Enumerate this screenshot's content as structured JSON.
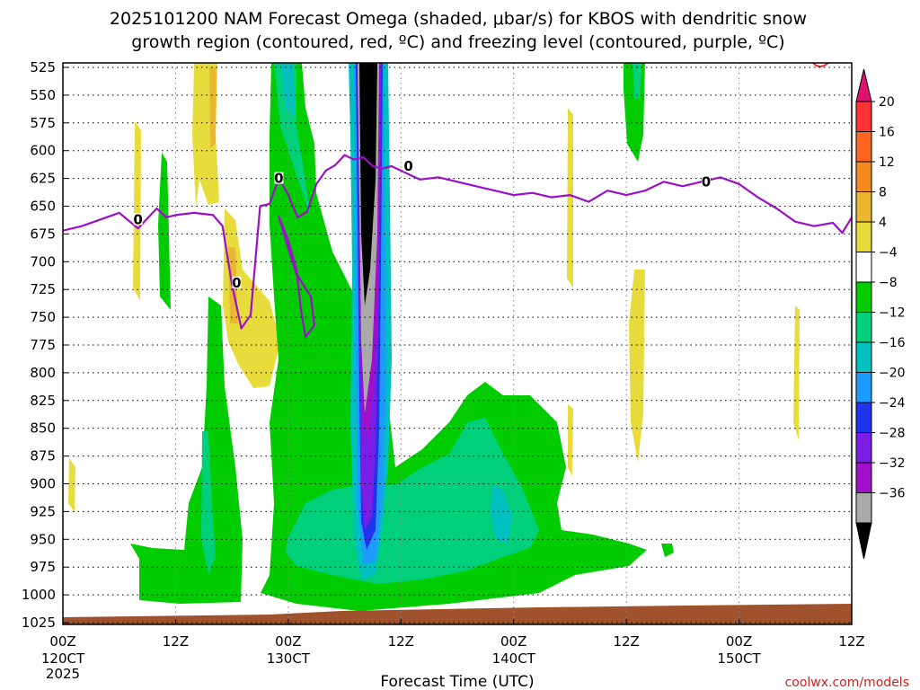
{
  "chart_data": {
    "type": "heatmap",
    "title_lines": [
      "2025101200 NAM Forecast Omega (shaded, μbar/s) for KBOS with dendritic snow",
      "growth region (contoured, red, ºC) and freezing level (contoured, purple, ºC)"
    ],
    "xlabel": "Forecast Time (UTC)",
    "credit": "coolwx.com/models",
    "y_ticks": [
      525,
      550,
      575,
      600,
      625,
      650,
      675,
      700,
      725,
      750,
      775,
      800,
      825,
      850,
      875,
      900,
      925,
      950,
      975,
      1000,
      1025
    ],
    "ylim": [
      525,
      1025
    ],
    "xlim_hours": [
      0,
      84
    ],
    "x_ticks": [
      {
        "hour": 0,
        "label": "00Z",
        "date": "120CT",
        "year": "2025"
      },
      {
        "hour": 12,
        "label": "12Z",
        "date": "",
        "year": ""
      },
      {
        "hour": 24,
        "label": "00Z",
        "date": "130CT",
        "year": ""
      },
      {
        "hour": 36,
        "label": "12Z",
        "date": "",
        "year": ""
      },
      {
        "hour": 48,
        "label": "00Z",
        "date": "140CT",
        "year": ""
      },
      {
        "hour": 60,
        "label": "12Z",
        "date": "",
        "year": ""
      },
      {
        "hour": 72,
        "label": "00Z",
        "date": "150CT",
        "year": ""
      },
      {
        "hour": 84,
        "label": "12Z",
        "date": "",
        "year": ""
      }
    ],
    "colorbar": {
      "labels": [
        "20",
        "16",
        "12",
        "8",
        "4",
        "−4",
        "−8",
        "−12",
        "−16",
        "−20",
        "−24",
        "−28",
        "−32",
        "−36"
      ],
      "colors": [
        "#ff3333",
        "#ff6622",
        "#f58a1e",
        "#e8b832",
        "#e8dc3c",
        "#ffffff",
        "#00cc00",
        "#00d07a",
        "#00c0c0",
        "#1e9bff",
        "#2233ee",
        "#7a1ee6",
        "#a010c8",
        "#aaaaaa"
      ],
      "top_arrow_color": "#e0116e",
      "bottom_arrow_color": "#000000"
    },
    "freezing_level": {
      "label": "0",
      "color": "#9b10c8",
      "hours": [
        0,
        2,
        4,
        6,
        8,
        10,
        11,
        12,
        14,
        16,
        17,
        18,
        19,
        20,
        21,
        22,
        23,
        24,
        25,
        26,
        27,
        28,
        29,
        30,
        31,
        32,
        33,
        34,
        35,
        36,
        37,
        38,
        40,
        42,
        44,
        46,
        48,
        50,
        52,
        54,
        56,
        58,
        60,
        62,
        64,
        66,
        68,
        70,
        72,
        74,
        76,
        78,
        80,
        82,
        83,
        84
      ],
      "pressure": [
        672,
        668,
        662,
        656,
        670,
        652,
        660,
        658,
        656,
        658,
        668,
        720,
        760,
        748,
        650,
        648,
        625,
        640,
        660,
        655,
        630,
        618,
        613,
        604,
        608,
        606,
        614,
        616,
        614,
        618,
        622,
        626,
        624,
        628,
        632,
        636,
        640,
        638,
        642,
        640,
        646,
        636,
        640,
        636,
        628,
        632,
        628,
        624,
        630,
        642,
        652,
        664,
        668,
        665,
        674,
        660
      ]
    },
    "omega_fields": [
      {
        "value": -6,
        "color": "#00cc00",
        "top": 530,
        "bottom": 1005,
        "hour_start": 22.3,
        "hour_end": 33.5
      },
      {
        "value": -6,
        "color": "#00cc00",
        "top": 775,
        "bottom": 1000,
        "hour_start": 33.5,
        "hour_end": 54.5
      },
      {
        "value": -6,
        "color": "#00cc00",
        "top": 935,
        "bottom": 975,
        "hour_start": 54.5,
        "hour_end": 61.5
      },
      {
        "value": -6,
        "color": "#00cc00",
        "top": 700,
        "bottom": 978,
        "hour_start": 8,
        "hour_end": 18.8
      },
      {
        "value": -6,
        "color": "#00cc00",
        "top": 620,
        "bottom": 700,
        "hour_start": 10.4,
        "hour_end": 11.8
      },
      {
        "value": -6,
        "color": "#00cc00",
        "top": 525,
        "bottom": 585,
        "hour_start": 60.2,
        "hour_end": 62.6
      },
      {
        "value": -10,
        "color": "#00d07a",
        "top": 800,
        "bottom": 975,
        "hour_start": 23.5,
        "hour_end": 52
      },
      {
        "value": -10,
        "color": "#00d07a",
        "top": 525,
        "bottom": 660,
        "hour_start": 23.5,
        "hour_end": 30.5
      },
      {
        "value": -14,
        "color": "#00c0c0",
        "top": 880,
        "bottom": 925,
        "hour_start": 45.5,
        "hour_end": 48
      },
      {
        "value": -18,
        "color": "#1e9bff",
        "top": 525,
        "bottom": 940,
        "hour_start": 31.6,
        "hour_end": 33.6
      },
      {
        "value": -26,
        "color": "#7a1ee6",
        "top": 525,
        "bottom": 930,
        "hour_start": 32,
        "hour_end": 33.2
      },
      {
        "value": -34,
        "color": "#aaaaaa",
        "top": 525,
        "bottom": 800,
        "hour_start": 32.2,
        "hour_end": 33
      },
      {
        "value": -38,
        "color": "#000000",
        "top": 525,
        "bottom": 700,
        "hour_start": 32.2,
        "hour_end": 33
      }
    ],
    "dgz_contour": {
      "color": "#ff2222",
      "label": "dendritic snow growth region"
    },
    "terrain_color": "#a0522d"
  }
}
